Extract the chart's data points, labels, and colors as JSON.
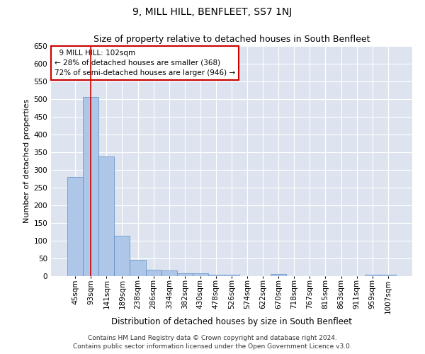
{
  "title": "9, MILL HILL, BENFLEET, SS7 1NJ",
  "subtitle": "Size of property relative to detached houses in South Benfleet",
  "xlabel": "Distribution of detached houses by size in South Benfleet",
  "ylabel": "Number of detached properties",
  "categories": [
    "45sqm",
    "93sqm",
    "141sqm",
    "189sqm",
    "238sqm",
    "286sqm",
    "334sqm",
    "382sqm",
    "430sqm",
    "478sqm",
    "526sqm",
    "574sqm",
    "622sqm",
    "670sqm",
    "718sqm",
    "767sqm",
    "815sqm",
    "863sqm",
    "911sqm",
    "959sqm",
    "1007sqm"
  ],
  "values": [
    280,
    507,
    338,
    115,
    46,
    18,
    17,
    9,
    8,
    5,
    5,
    0,
    0,
    6,
    0,
    0,
    0,
    0,
    0,
    5,
    5
  ],
  "bar_color": "#aec6e8",
  "bar_edge_color": "#5a8fc3",
  "ylim": [
    0,
    650
  ],
  "yticks": [
    0,
    50,
    100,
    150,
    200,
    250,
    300,
    350,
    400,
    450,
    500,
    550,
    600,
    650
  ],
  "annotation_box_text": "  9 MILL HILL: 102sqm\n← 28% of detached houses are smaller (368)\n72% of semi-detached houses are larger (946) →",
  "vline_x": 1,
  "vline_color": "#cc0000",
  "footer_line1": "Contains HM Land Registry data © Crown copyright and database right 2024.",
  "footer_line2": "Contains public sector information licensed under the Open Government Licence v3.0.",
  "background_color": "#ffffff",
  "plot_bg_color": "#dde4f0",
  "grid_color": "#ffffff",
  "title_fontsize": 10,
  "subtitle_fontsize": 9,
  "xlabel_fontsize": 8.5,
  "ylabel_fontsize": 8,
  "tick_fontsize": 7.5,
  "annotation_fontsize": 7.5,
  "footer_fontsize": 6.5
}
